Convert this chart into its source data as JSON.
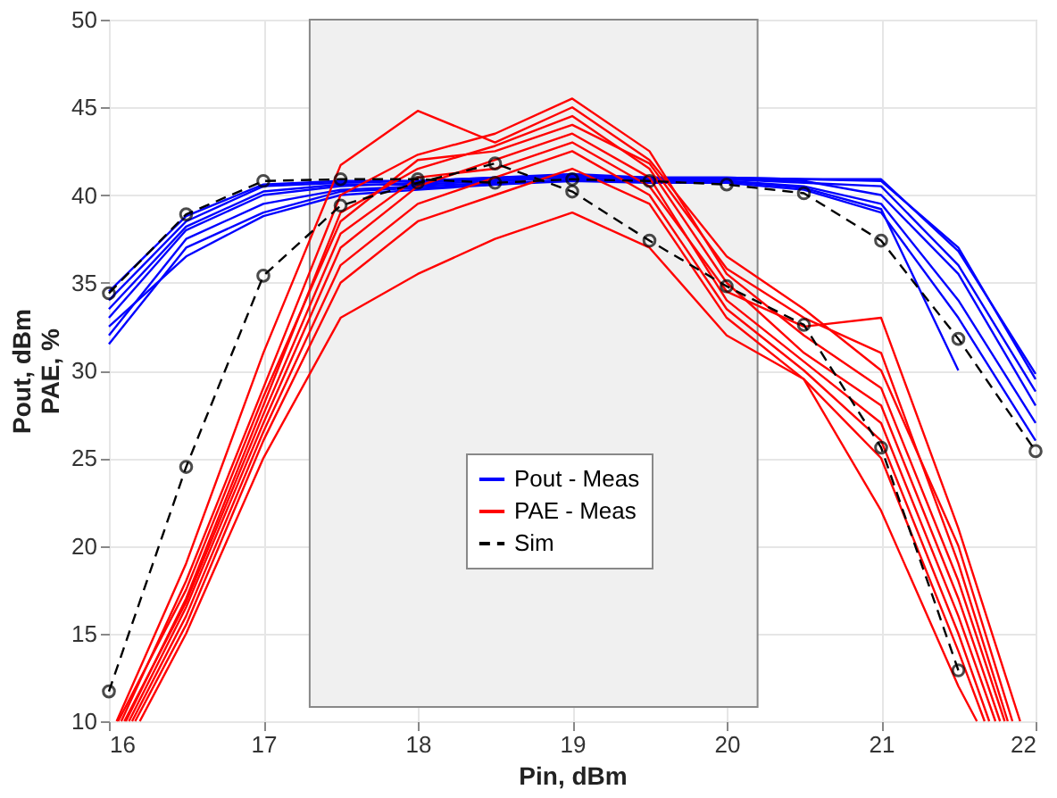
{
  "chart_data": {
    "type": "line",
    "xlabel": "Pin, dBm",
    "ylabel": "Pout, dBm\nPAE, %",
    "xlim": [
      16,
      22
    ],
    "ylim": [
      10,
      50
    ],
    "xticks": [
      16,
      17,
      18,
      19,
      20,
      21,
      22
    ],
    "yticks": [
      10,
      15,
      20,
      25,
      30,
      35,
      40,
      45,
      50
    ],
    "grid": true,
    "legend": "bottom",
    "marker": "none",
    "line_style": "solid",
    "x": [
      16,
      16.5,
      17,
      17.5,
      18,
      18.5,
      19,
      19.5,
      20,
      20.5,
      21,
      21.5,
      22
    ],
    "bands": [
      {
        "axis": "x",
        "from": 17.3,
        "to": 20.2,
        "color": "#f0f0f0"
      }
    ],
    "series": [
      {
        "name": "Pout - Meas",
        "color": "#0000ff",
        "values": [
          34,
          38.5,
          40.5,
          40.7,
          40.8,
          41,
          41.2,
          41,
          41,
          40.9,
          40.8,
          37,
          29.5
        ]
      },
      {
        "color": "#0000ff",
        "values": [
          33,
          38,
          40,
          40.5,
          40.7,
          40.9,
          41,
          40.9,
          40.9,
          40.8,
          40,
          35.5,
          28
        ]
      },
      {
        "color": "#0000ff",
        "values": [
          32,
          37.5,
          39.5,
          40.3,
          40.5,
          40.7,
          40.8,
          40.8,
          40.8,
          40.5,
          39.5,
          34,
          27
        ]
      },
      {
        "color": "#0000ff",
        "values": [
          31.5,
          37,
          39,
          40.2,
          40.4,
          40.6,
          40.8,
          40.7,
          40.7,
          40.3,
          39,
          33,
          26
        ]
      },
      {
        "color": "#0000ff",
        "values": [
          33.5,
          38.2,
          40.2,
          40.6,
          40.6,
          40.8,
          41,
          40.9,
          40.9,
          40.7,
          40.5,
          36,
          28.8
        ]
      },
      {
        "color": "#0000ff",
        "x": [
          16,
          16.5,
          17,
          17.5,
          18,
          18.5,
          19,
          19.5,
          20,
          20.5,
          21,
          21.5
        ],
        "values": [
          32.5,
          36.5,
          38.8,
          40,
          40.3,
          40.6,
          40.9,
          40.8,
          40.8,
          40.4,
          39.2,
          30
        ]
      },
      {
        "color": "#0000ff",
        "values": [
          34.5,
          38.8,
          40.6,
          40.8,
          40.8,
          41,
          41.1,
          41,
          41,
          40.9,
          40.9,
          36.8,
          29.8
        ]
      },
      {
        "name": "PAE - Meas",
        "color": "#ff0000",
        "x": [
          16.05,
          16.5,
          17,
          17.5,
          18,
          18.5,
          19,
          19.5,
          20,
          20.5,
          21,
          21.5,
          21.85
        ],
        "values": [
          10,
          19,
          31,
          41.7,
          44.8,
          43,
          45,
          42,
          36.5,
          33.5,
          30,
          20,
          10
        ]
      },
      {
        "color": "#ff0000",
        "x": [
          16.08,
          16.5,
          17,
          17.5,
          18,
          18.5,
          19,
          19.5,
          20,
          20.5,
          21,
          21.5,
          21.8
        ],
        "values": [
          10,
          18,
          29,
          40,
          42.3,
          43.5,
          45.5,
          42.5,
          35.5,
          32,
          29,
          18,
          10
        ]
      },
      {
        "color": "#ff0000",
        "x": [
          16.11,
          16.5,
          17,
          17.5,
          18,
          18.5,
          19,
          19.5,
          20,
          20.5,
          21,
          21.5,
          21.77
        ],
        "values": [
          10,
          17,
          28,
          39,
          41.5,
          42.8,
          44.5,
          41.5,
          35,
          31,
          28,
          17,
          10
        ]
      },
      {
        "color": "#ff0000",
        "x": [
          16.13,
          16.5,
          17,
          17.5,
          18,
          18.5,
          19,
          19.5,
          20,
          20.5,
          21,
          21.5,
          21.74
        ],
        "values": [
          10,
          16.5,
          27,
          37,
          40.5,
          42,
          43.5,
          41,
          34,
          30.5,
          27,
          16,
          10
        ]
      },
      {
        "color": "#ff0000",
        "x": [
          16.15,
          16.5,
          17,
          17.5,
          18,
          18.5,
          19,
          19.5,
          20,
          20.5,
          21,
          21.5,
          21.7
        ],
        "values": [
          10,
          16,
          26.5,
          36,
          39.5,
          41,
          42.5,
          40,
          33.5,
          30,
          26,
          15,
          10
        ]
      },
      {
        "color": "#ff0000",
        "x": [
          16.17,
          16.5,
          17,
          17.5,
          18,
          18.5,
          19,
          19.5,
          20,
          20.5,
          21,
          21.5,
          21.67
        ],
        "values": [
          10,
          15.5,
          26,
          35,
          38.5,
          40,
          41.5,
          39.5,
          33,
          29.5,
          25,
          14,
          10
        ]
      },
      {
        "color": "#ff0000",
        "x": [
          16.2,
          16.5,
          17,
          17.5,
          18,
          18.5,
          19,
          19.5,
          20,
          20.5,
          21,
          21.5,
          21.62
        ],
        "values": [
          10,
          15,
          25,
          33,
          35.5,
          37.5,
          39,
          37,
          32,
          29.5,
          22,
          12,
          10
        ]
      },
      {
        "color": "#ff0000",
        "x": [
          16.06,
          16.5,
          17,
          17.5,
          18,
          18.5,
          19,
          19.5,
          20,
          20.5,
          21,
          21.5,
          21.82
        ],
        "values": [
          10,
          17.5,
          28.5,
          38.5,
          42,
          42.5,
          44,
          41.8,
          35.8,
          33,
          31,
          19,
          10
        ]
      },
      {
        "color": "#ff0000",
        "x": [
          16.1,
          16.5,
          17,
          17.5,
          18,
          18.5,
          19,
          19.5,
          20,
          20.5,
          21,
          21.5,
          21.9
        ],
        "values": [
          10,
          16.8,
          27.5,
          37.8,
          41,
          41.5,
          43,
          40.5,
          34.5,
          32.5,
          33,
          21,
          10
        ]
      },
      {
        "name": "Sim",
        "color": "#000000",
        "marker": "circle",
        "line_style": "dashed",
        "values": [
          34.4,
          38.9,
          40.8,
          40.9,
          40.9,
          40.7,
          40.9,
          40.8,
          40.6,
          40.1,
          37.4,
          31.8,
          25.4
        ]
      },
      {
        "color": "#000000",
        "marker": "circle",
        "line_style": "dashed",
        "x": [
          16,
          16.5,
          17,
          17.5,
          18,
          18.5,
          19,
          19.5,
          20,
          20.5,
          21,
          21.5
        ],
        "values": [
          11.7,
          24.5,
          35.4,
          39.4,
          40.7,
          41.8,
          40.2,
          37.4,
          34.8,
          32.6,
          25.6,
          12.9
        ]
      }
    ]
  }
}
